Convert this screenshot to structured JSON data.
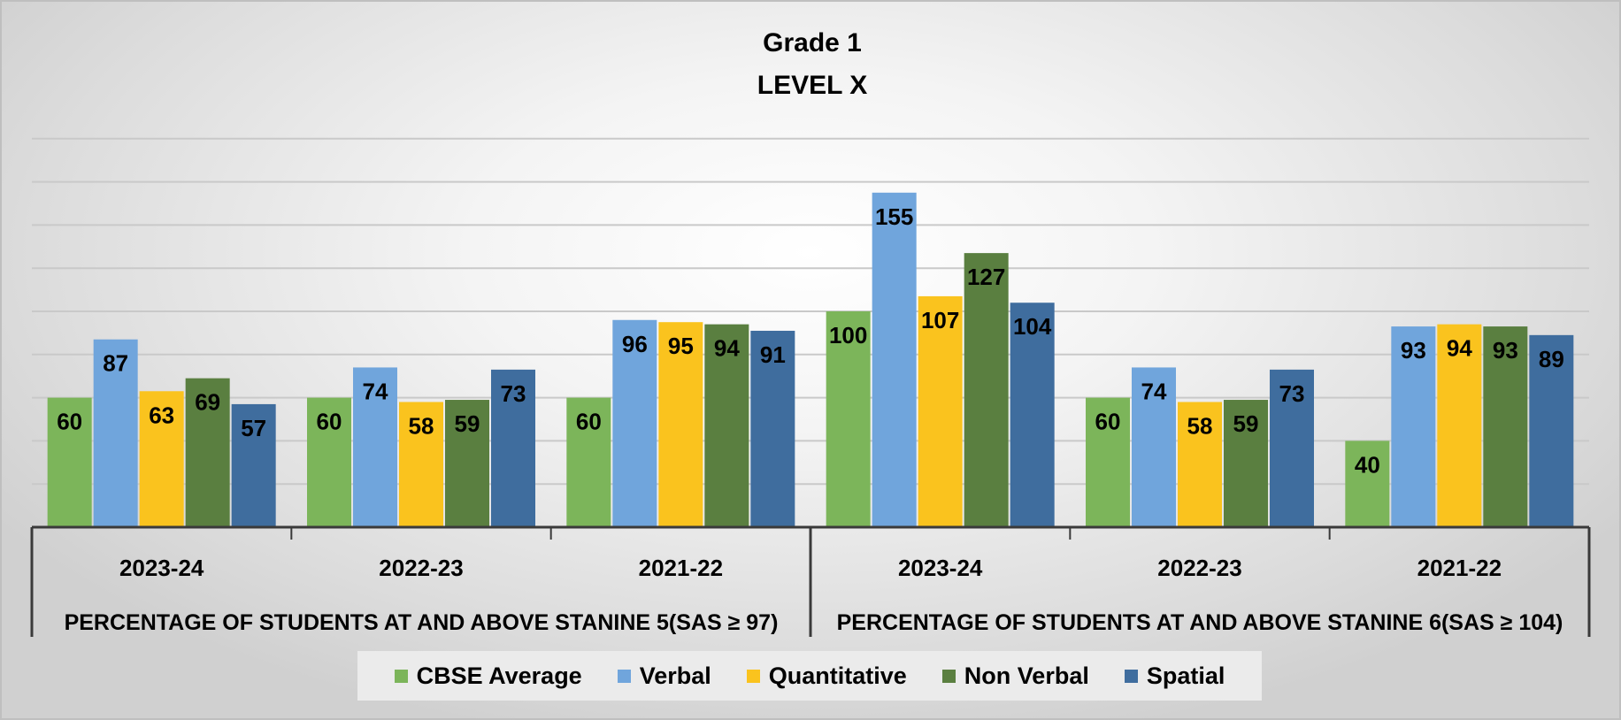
{
  "chart_data": {
    "type": "bar",
    "title": "Grade 1",
    "subtitle": "LEVEL X",
    "groups": [
      {
        "label": "PERCENTAGE OF STUDENTS AT AND ABOVE STANINE 5(SAS ≥ 97)",
        "categories": [
          "2023-24",
          "2022-23",
          "2021-22"
        ]
      },
      {
        "label": "PERCENTAGE OF STUDENTS AT AND ABOVE STANINE 6(SAS ≥ 104)",
        "categories": [
          "2023-24",
          "2022-23",
          "2021-22"
        ]
      }
    ],
    "categories": [
      "2023-24",
      "2022-23",
      "2021-22",
      "2023-24",
      "2022-23",
      "2021-22"
    ],
    "series": [
      {
        "name": "CBSE Average",
        "color": "#7cb55a",
        "values": [
          60,
          60,
          60,
          100,
          60,
          40
        ]
      },
      {
        "name": "Verbal",
        "color": "#70a5dc",
        "values": [
          87,
          74,
          96,
          155,
          74,
          93
        ]
      },
      {
        "name": "Quantitative",
        "color": "#fac31e",
        "values": [
          63,
          58,
          95,
          107,
          58,
          94
        ]
      },
      {
        "name": "Non Verbal",
        "color": "#5a7f40",
        "values": [
          69,
          59,
          94,
          127,
          59,
          93
        ]
      },
      {
        "name": "Spatial",
        "color": "#3f6d9e",
        "values": [
          57,
          73,
          91,
          104,
          73,
          89
        ]
      }
    ],
    "ylim": [
      0,
      180
    ],
    "grid": true,
    "legend_position": "bottom"
  }
}
